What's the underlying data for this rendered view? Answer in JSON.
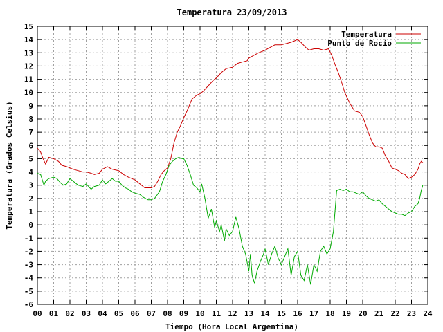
{
  "chart_data": {
    "type": "line",
    "title": "Temperatura 23/09/2013",
    "xlabel": "Tiempo (Hora Local Argentina)",
    "ylabel": "Temperatura (Grados Celsius)",
    "xlim": [
      0,
      24
    ],
    "ylim": [
      -6,
      15
    ],
    "xticks": [
      "00",
      "01",
      "02",
      "03",
      "04",
      "05",
      "06",
      "07",
      "08",
      "09",
      "10",
      "11",
      "12",
      "13",
      "14",
      "15",
      "16",
      "17",
      "18",
      "19",
      "20",
      "21",
      "22",
      "23",
      "24"
    ],
    "yticks": [
      -6,
      -5,
      -4,
      -3,
      -2,
      -1,
      0,
      1,
      2,
      3,
      4,
      5,
      6,
      7,
      8,
      9,
      10,
      11,
      12,
      13,
      14,
      15
    ],
    "grid": true,
    "legend_position": "top-right",
    "series": [
      {
        "name": "Temperatura",
        "color": "#cc0000",
        "x": [
          0.0,
          0.2,
          0.35,
          0.5,
          0.7,
          1.0,
          1.3,
          1.5,
          1.8,
          2.2,
          2.5,
          2.8,
          3.0,
          3.3,
          3.5,
          3.8,
          4.0,
          4.3,
          4.6,
          5.0,
          5.3,
          5.6,
          6.0,
          6.3,
          6.6,
          6.8,
          7.0,
          7.2,
          7.4,
          7.6,
          7.8,
          8.0,
          8.2,
          8.4,
          8.6,
          8.8,
          9.0,
          9.2,
          9.5,
          9.8,
          10.0,
          10.2,
          10.5,
          10.8,
          11.0,
          11.3,
          11.6,
          12.0,
          12.3,
          12.6,
          12.9,
          13.0,
          13.3,
          13.6,
          14.0,
          14.3,
          14.6,
          15.0,
          15.3,
          15.6,
          15.8,
          16.0,
          16.2,
          16.5,
          16.7,
          17.0,
          17.3,
          17.6,
          17.9,
          18.1,
          18.3,
          18.5,
          18.7,
          18.9,
          19.2,
          19.5,
          19.8,
          20.0,
          20.2,
          20.4,
          20.6,
          20.8,
          21.0,
          21.2,
          21.4,
          21.6,
          21.8,
          22.0,
          22.2,
          22.4,
          22.6,
          22.8,
          23.0,
          23.2,
          23.4,
          23.5,
          23.6,
          23.7
        ],
        "values": [
          5.8,
          5.5,
          5.0,
          4.6,
          5.1,
          5.0,
          4.8,
          4.5,
          4.4,
          4.2,
          4.1,
          4.0,
          4.0,
          3.9,
          3.8,
          3.9,
          4.2,
          4.4,
          4.2,
          4.1,
          3.8,
          3.6,
          3.4,
          3.1,
          2.8,
          2.8,
          2.8,
          2.9,
          3.3,
          3.8,
          4.1,
          4.3,
          5.0,
          6.2,
          7.0,
          7.5,
          8.1,
          8.6,
          9.5,
          9.8,
          9.9,
          10.1,
          10.5,
          10.9,
          11.1,
          11.5,
          11.8,
          11.9,
          12.2,
          12.3,
          12.4,
          12.6,
          12.8,
          13.0,
          13.2,
          13.4,
          13.6,
          13.6,
          13.7,
          13.8,
          13.9,
          14.0,
          13.8,
          13.4,
          13.2,
          13.3,
          13.3,
          13.2,
          13.3,
          12.8,
          12.1,
          11.5,
          10.8,
          10.0,
          9.2,
          8.6,
          8.5,
          8.2,
          7.5,
          6.8,
          6.2,
          5.9,
          5.9,
          5.8,
          5.2,
          4.8,
          4.3,
          4.2,
          4.1,
          3.9,
          3.8,
          3.5,
          3.6,
          3.8,
          4.2,
          4.6,
          4.8,
          4.7
        ]
      },
      {
        "name": "Punto de Rocío",
        "color": "#00aa00",
        "x": [
          0.0,
          0.2,
          0.4,
          0.5,
          0.7,
          1.0,
          1.2,
          1.4,
          1.6,
          1.8,
          2.0,
          2.2,
          2.5,
          2.8,
          3.0,
          3.3,
          3.5,
          3.8,
          4.0,
          4.2,
          4.4,
          4.6,
          4.8,
          5.0,
          5.2,
          5.4,
          5.6,
          5.8,
          6.0,
          6.3,
          6.5,
          6.8,
          7.0,
          7.2,
          7.5,
          7.7,
          7.9,
          8.1,
          8.3,
          8.5,
          8.7,
          8.9,
          9.0,
          9.2,
          9.4,
          9.6,
          9.8,
          10.0,
          10.1,
          10.3,
          10.5,
          10.7,
          10.9,
          11.0,
          11.2,
          11.3,
          11.5,
          11.6,
          11.8,
          12.0,
          12.2,
          12.4,
          12.6,
          12.8,
          13.0,
          13.1,
          13.2,
          13.35,
          13.5,
          13.7,
          13.9,
          14.0,
          14.2,
          14.4,
          14.6,
          14.8,
          15.0,
          15.2,
          15.4,
          15.6,
          15.8,
          16.0,
          16.2,
          16.4,
          16.6,
          16.8,
          17.0,
          17.2,
          17.4,
          17.6,
          17.8,
          18.0,
          18.2,
          18.4,
          18.6,
          18.8,
          19.0,
          19.2,
          19.4,
          19.6,
          19.8,
          20.0,
          20.2,
          20.4,
          20.6,
          20.8,
          21.0,
          21.2,
          21.4,
          21.6,
          21.8,
          22.0,
          22.2,
          22.4,
          22.6,
          22.8,
          23.0,
          23.2,
          23.4,
          23.5,
          23.6,
          23.7
        ],
        "values": [
          3.9,
          3.8,
          3.0,
          3.3,
          3.5,
          3.6,
          3.5,
          3.2,
          3.0,
          3.1,
          3.5,
          3.3,
          3.0,
          2.9,
          3.1,
          2.7,
          2.9,
          3.0,
          3.4,
          3.1,
          3.3,
          3.5,
          3.3,
          3.3,
          3.0,
          2.8,
          2.7,
          2.5,
          2.4,
          2.3,
          2.1,
          1.9,
          1.9,
          2.0,
          2.5,
          3.3,
          3.8,
          4.5,
          4.8,
          5.0,
          5.1,
          5.0,
          5.0,
          4.5,
          3.8,
          3.0,
          2.8,
          2.5,
          3.1,
          2.0,
          0.5,
          1.2,
          -0.2,
          0.3,
          -0.5,
          0.0,
          -1.2,
          -0.3,
          -0.8,
          -0.5,
          0.6,
          -0.3,
          -1.6,
          -2.2,
          -3.5,
          -2.2,
          -3.8,
          -4.4,
          -3.5,
          -2.8,
          -2.2,
          -1.8,
          -3.0,
          -2.2,
          -1.6,
          -2.5,
          -3.0,
          -2.4,
          -1.8,
          -3.8,
          -2.4,
          -2.0,
          -3.8,
          -4.2,
          -3.0,
          -4.5,
          -3.0,
          -3.5,
          -2.0,
          -1.6,
          -2.2,
          -1.8,
          -0.5,
          2.6,
          2.7,
          2.6,
          2.7,
          2.5,
          2.5,
          2.4,
          2.3,
          2.5,
          2.2,
          2.0,
          1.9,
          1.8,
          1.9,
          1.6,
          1.4,
          1.2,
          1.0,
          0.9,
          0.8,
          0.8,
          0.7,
          0.9,
          1.0,
          1.4,
          1.6,
          2.0,
          2.6,
          3.0
        ]
      }
    ]
  }
}
